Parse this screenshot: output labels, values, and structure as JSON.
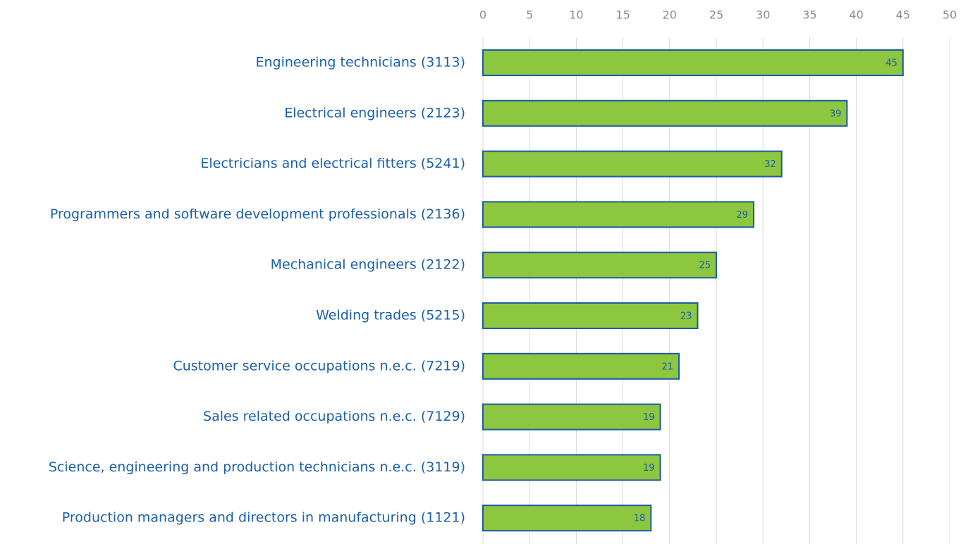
{
  "chart_data": {
    "type": "bar",
    "orientation": "horizontal",
    "categories": [
      "Engineering technicians (3113)",
      "Electrical engineers (2123)",
      "Electricians and electrical fitters (5241)",
      "Programmers and software development professionals (2136)",
      "Mechanical engineers (2122)",
      "Welding trades (5215)",
      "Customer service occupations n.e.c. (7219)",
      "Sales related occupations n.e.c. (7129)",
      "Science, engineering and production technicians n.e.c. (3119)",
      "Production managers and directors in manufacturing (1121)"
    ],
    "values": [
      45,
      39,
      32,
      29,
      25,
      23,
      21,
      19,
      19,
      18
    ],
    "color": "#8dc63f",
    "edge_color": "#1f5aa6",
    "xlim": [
      0,
      50
    ],
    "xticks": [
      0,
      5,
      10,
      15,
      20,
      25,
      30,
      35,
      40,
      45,
      50
    ],
    "grid": true
  }
}
